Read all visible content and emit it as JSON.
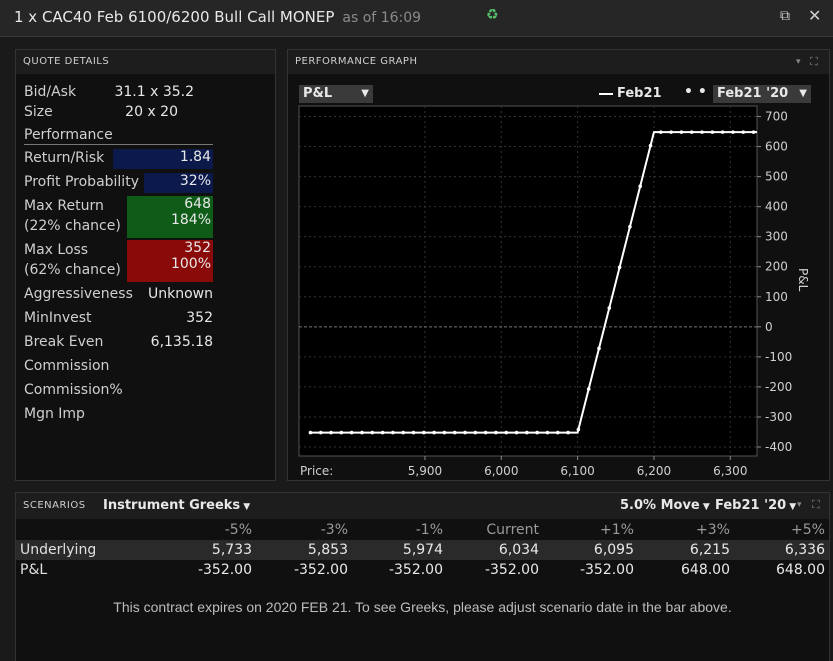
{
  "window": {
    "title": "1 x CAC40 Feb 6100/6200 Bull Call MONEP",
    "as_of": "as of 16:09"
  },
  "quote": {
    "header": "QUOTE DETAILS",
    "bid_ask_label": "Bid/Ask",
    "bid_ask": "31.1 x 35.2",
    "size_label": "Size",
    "size": "20 x 20",
    "performance_label": "Performance",
    "return_risk_label": "Return/Risk",
    "return_risk": "1.84",
    "profit_prob_label": "Profit Probability",
    "profit_prob": "32%",
    "max_return_label": "Max Return",
    "max_return": "648",
    "max_return_chance": "(22% chance)",
    "max_return_pct": "184%",
    "max_loss_label": "Max Loss",
    "max_loss": "352",
    "max_loss_chance": "(62% chance)",
    "max_loss_pct": "100%",
    "aggressiveness_label": "Aggressiveness",
    "aggressiveness": "Unknown",
    "mininvest_label": "MinInvest",
    "mininvest": "352",
    "break_even_label": "Break Even",
    "break_even": "6,135.18",
    "commission_label": "Commission",
    "commission_pct_label": "Commission%",
    "mgn_imp_label": "Mgn Imp"
  },
  "perf": {
    "header": "PERFORMANCE GRAPH",
    "metric_dropdown": "P&L",
    "legend_line": "Feb21",
    "date_dropdown": "Feb21 '20",
    "price_label": "Price:"
  },
  "chart_data": {
    "type": "line",
    "x": [
      5750,
      6100,
      6200,
      6335
    ],
    "series": [
      {
        "name": "Feb21",
        "values": [
          -352,
          -352,
          648,
          648
        ]
      }
    ],
    "xlim": [
      5735,
      6335
    ],
    "ylim": [
      -430,
      735
    ],
    "xticks": [
      "5,900",
      "6,000",
      "6,100",
      "6,200",
      "6,300"
    ],
    "xtick_values": [
      5900,
      6000,
      6100,
      6200,
      6300
    ],
    "yticks": [
      700,
      600,
      500,
      400,
      300,
      200,
      100,
      0,
      -100,
      -200,
      -300,
      -400
    ],
    "ylabel": "P&L",
    "xlabel": "Price:",
    "grid": true,
    "marker_step": 13.5
  },
  "scenarios": {
    "header": "SCENARIOS",
    "greeks_dropdown": "Instrument Greeks",
    "move_dropdown": "5.0% Move",
    "date_dropdown": "Feb21 '20",
    "columns": [
      "-5%",
      "-3%",
      "-1%",
      "Current",
      "+1%",
      "+3%",
      "+5%"
    ],
    "rows": [
      {
        "label": "Underlying",
        "values": [
          "5,733",
          "5,853",
          "5,974",
          "6,034",
          "6,095",
          "6,215",
          "6,336"
        ]
      },
      {
        "label": "P&L",
        "values": [
          "-352.00",
          "-352.00",
          "-352.00",
          "-352.00",
          "-352.00",
          "648.00",
          "648.00"
        ]
      }
    ],
    "note": "This contract expires on 2020 FEB 21. To see Greeks, please adjust scenario date in the bar above."
  }
}
